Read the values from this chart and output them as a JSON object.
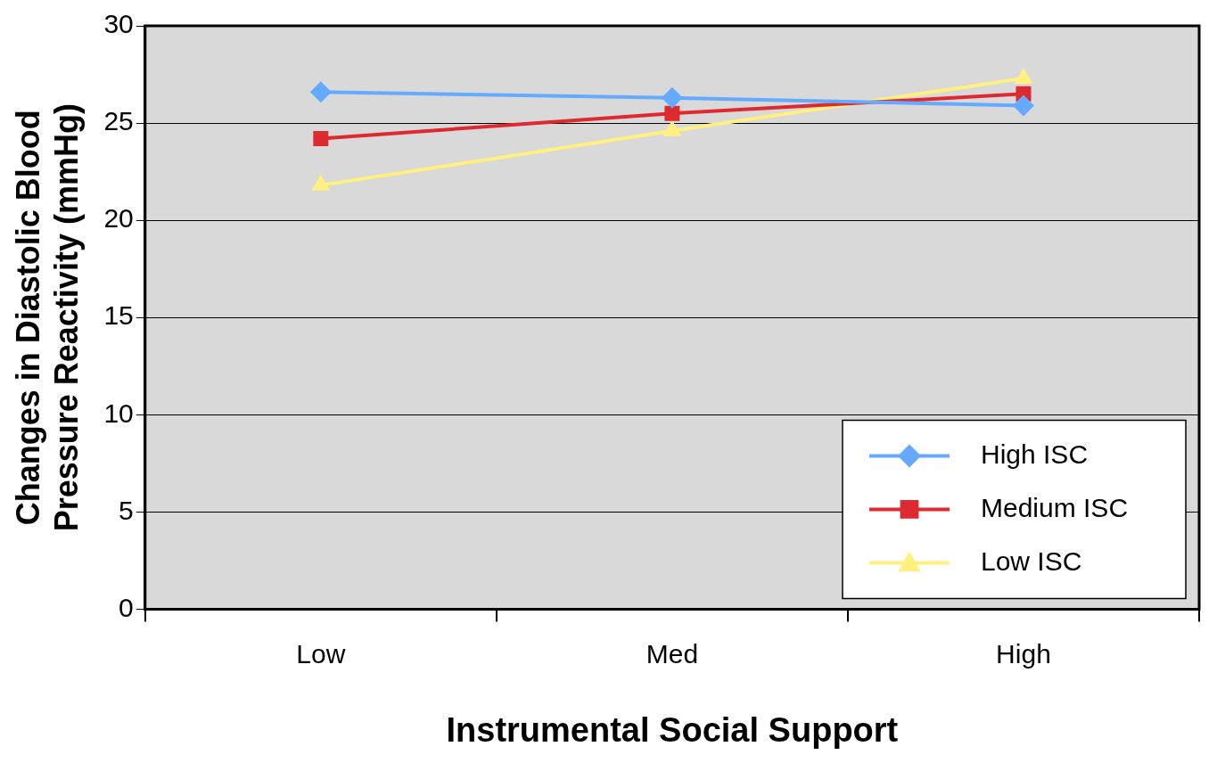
{
  "chart_data": {
    "type": "line",
    "xlabel": "Instrumental Social Support",
    "ylabel": "Changes in Diastolic Blood Pressure Reactivity (mmHg)",
    "categories": [
      "Low",
      "Med",
      "High"
    ],
    "series": [
      {
        "name": "High ISC",
        "color": "#66aaff",
        "marker": "diamond",
        "values": [
          26.6,
          26.3,
          25.9
        ]
      },
      {
        "name": "Medium ISC",
        "color": "#dd2a30",
        "marker": "square",
        "values": [
          24.2,
          25.5,
          26.5
        ]
      },
      {
        "name": "Low ISC",
        "color": "#fff080",
        "marker": "triangle",
        "values": [
          21.8,
          24.6,
          27.3
        ]
      }
    ],
    "ylim": [
      0,
      30
    ],
    "yticks": [
      0,
      5,
      10,
      15,
      20,
      25,
      30
    ],
    "grid": "y",
    "legend": "bottom right",
    "line_style": "solid"
  }
}
